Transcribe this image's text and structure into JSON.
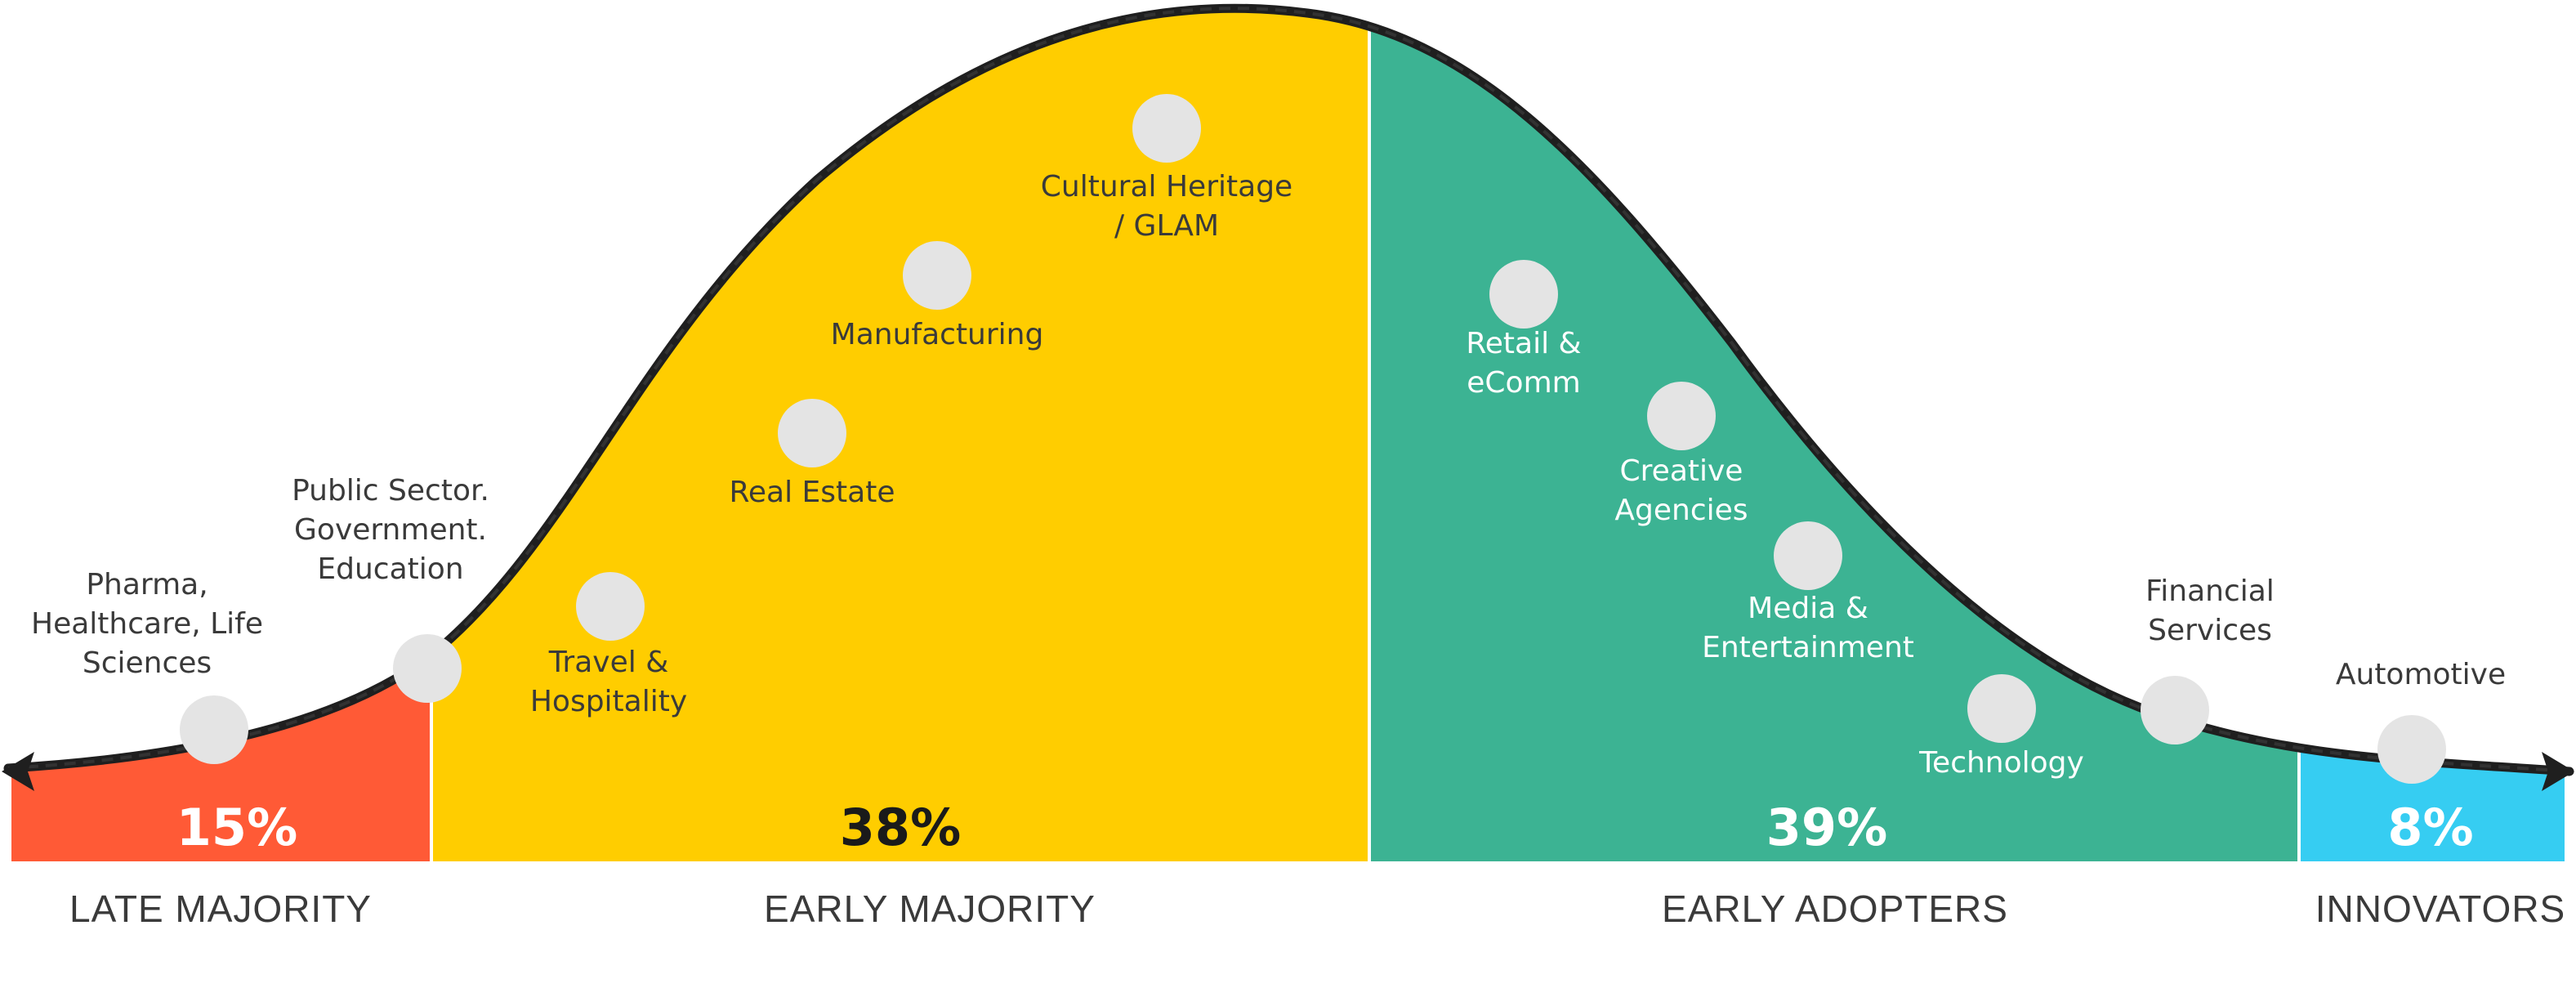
{
  "segments": [
    {
      "key": "late",
      "label": "LATE MAJORITY",
      "percent": "15%",
      "color": "#ff5a36",
      "percent_color": "#ffffff"
    },
    {
      "key": "early_majority",
      "label": "EARLY MAJORITY",
      "percent": "38%",
      "color": "#ffcd00",
      "percent_color": "#1a1a1a"
    },
    {
      "key": "early_adopters",
      "label": "EARLY ADOPTERS",
      "percent": "39%",
      "color": "#3cb393",
      "percent_color": "#ffffff"
    },
    {
      "key": "innovators",
      "label": "INNOVATORS",
      "percent": "8%",
      "color": "#36cdf2",
      "percent_color": "#ffffff"
    }
  ],
  "industries": [
    {
      "lines": [
        "Pharma,",
        "Healthcare, Life",
        "Sciences"
      ],
      "text_color": "#3a3a3a"
    },
    {
      "lines": [
        "Public Sector.",
        "Government.",
        "Education"
      ],
      "text_color": "#3a3a3a"
    },
    {
      "lines": [
        "Travel &",
        "Hospitality"
      ],
      "text_color": "#3a3a3a"
    },
    {
      "lines": [
        "Real Estate"
      ],
      "text_color": "#3a3a3a"
    },
    {
      "lines": [
        "Manufacturing"
      ],
      "text_color": "#3a3a3a"
    },
    {
      "lines": [
        "Cultural Heritage",
        "/ GLAM"
      ],
      "text_color": "#3a3a3a"
    },
    {
      "lines": [
        "Retail &",
        "eComm"
      ],
      "text_color": "#ffffff"
    },
    {
      "lines": [
        "Creative",
        "Agencies"
      ],
      "text_color": "#ffffff"
    },
    {
      "lines": [
        "Media &",
        "Entertainment"
      ],
      "text_color": "#ffffff"
    },
    {
      "lines": [
        "Technology"
      ],
      "text_color": "#ffffff"
    },
    {
      "lines": [
        "Financial",
        "Services"
      ],
      "text_color": "#3a3a3a"
    },
    {
      "lines": [
        "Automotive"
      ],
      "text_color": "#3a3a3a"
    }
  ]
}
